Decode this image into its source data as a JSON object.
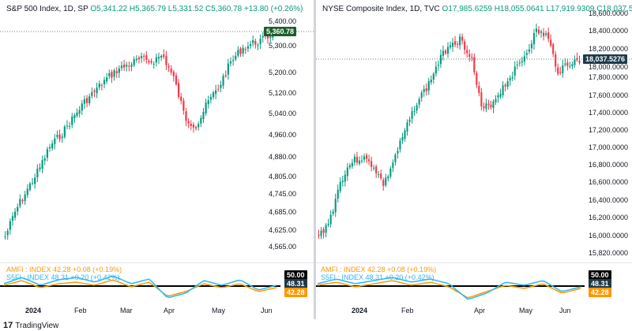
{
  "footer": {
    "logo_icon": "tradingview-logo-icon",
    "brand": "TradingView"
  },
  "charts": [
    {
      "id": "left",
      "legend": {
        "title": "S&P 500 Index, 1D, SP",
        "ohlc": "O5,341.22 H5,365.79 L5,331.52 C5,360.78 +13.80 (+0.26%)"
      },
      "price_axis": [
        "5,400.00",
        "5,300.00",
        "5,200.00",
        "5,120.00",
        "5,040.00",
        "4,960.00",
        "4,880.00",
        "4,805.00",
        "4,745.00",
        "4,685.00",
        "4,625.00",
        "4,565.00"
      ],
      "last_price": "5,360.78",
      "time_axis": [
        "2024",
        "Feb",
        "Mar",
        "Apr",
        "May",
        "Jun"
      ],
      "indicators": {
        "line1": "AMFI : INDEX 42.28 +0.08 (+0.19%)",
        "line2": "S5FI : INDEX 48.31 +0.20 (+0.42%)",
        "badges": [
          "50.00",
          "48.31",
          "42.28"
        ]
      }
    },
    {
      "id": "right",
      "legend": {
        "title": "NYSE Composite Index, 1D, TVC",
        "ohlc": "O17,985.6259 H18,055.0641 L17,919.9309 C18,037.5276 ..."
      },
      "price_axis": [
        "18,600.0000",
        "18,400.0000",
        "18,200.0000",
        "18,000.0000",
        "17,800.0000",
        "17,600.0000",
        "17,400.0000",
        "17,200.0000",
        "17,000.0000",
        "16,800.0000",
        "16,600.0000",
        "16,400.0000",
        "16,200.0000",
        "16,000.0000",
        "15,820.0000"
      ],
      "last_price": "18,037.5276",
      "time_axis": [
        "2024",
        "Feb",
        "Apr",
        "May",
        "Jun"
      ],
      "indicators": {
        "line1": "AMFI : INDEX 42.28 +0.08 (+0.19%)",
        "line2": "S5FI : INDEX 48.31 +0.20 (+0.42%)",
        "badges": [
          "50.00",
          "48.31",
          "42.28"
        ]
      }
    }
  ],
  "colors": {
    "up": "#089981",
    "down": "#f23645",
    "amfi": "#ff9800",
    "s5fi": "#29b6f6",
    "line50": "#000000"
  }
}
